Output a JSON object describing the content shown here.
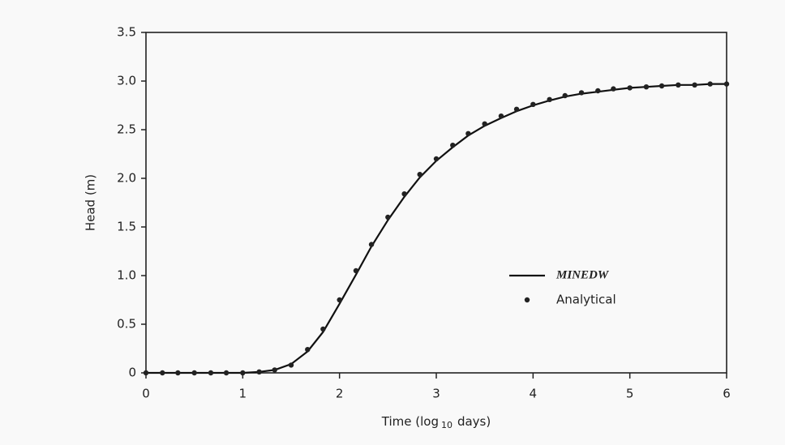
{
  "chart_data": {
    "type": "line",
    "ylabel": "Head (m)",
    "xlabel": {
      "main": "Time (log",
      "sub": "10",
      "end": "days)"
    },
    "x": [
      0,
      0.17,
      0.33,
      0.5,
      0.67,
      0.83,
      1,
      1.17,
      1.33,
      1.5,
      1.67,
      1.83,
      2,
      2.17,
      2.33,
      2.5,
      2.67,
      2.83,
      3,
      3.17,
      3.33,
      3.5,
      3.67,
      3.83,
      4,
      4.17,
      4.33,
      4.5,
      4.67,
      4.83,
      5,
      5.17,
      5.33,
      5.5,
      5.67,
      5.83,
      6
    ],
    "series": [
      {
        "name": "MINEDW",
        "kind": "line",
        "color": "#111111",
        "values": [
          0,
          0,
          0,
          0,
          0,
          0,
          0,
          0.01,
          0.03,
          0.09,
          0.22,
          0.42,
          0.71,
          1.01,
          1.3,
          1.57,
          1.81,
          2.01,
          2.18,
          2.32,
          2.44,
          2.54,
          2.62,
          2.69,
          2.75,
          2.8,
          2.84,
          2.87,
          2.89,
          2.91,
          2.93,
          2.94,
          2.95,
          2.96,
          2.96,
          2.97,
          2.97
        ]
      },
      {
        "name": "Analytical",
        "kind": "scatter",
        "color": "#222222",
        "values": [
          0,
          0,
          0,
          0,
          0,
          0,
          0,
          0.01,
          0.03,
          0.08,
          0.24,
          0.45,
          0.75,
          1.05,
          1.32,
          1.6,
          1.84,
          2.04,
          2.2,
          2.34,
          2.46,
          2.56,
          2.64,
          2.71,
          2.76,
          2.81,
          2.85,
          2.88,
          2.9,
          2.92,
          2.93,
          2.94,
          2.95,
          2.96,
          2.96,
          2.97,
          2.97
        ]
      }
    ],
    "xlim": [
      0,
      6
    ],
    "xticks": [
      0,
      1,
      2,
      3,
      4,
      5,
      6
    ],
    "ylim": [
      0,
      3.5
    ],
    "yticks": [
      0,
      0.5,
      {
        "value": 1,
        "label": "1.0"
      },
      1.5,
      {
        "value": 2,
        "label": "2.0"
      },
      2.5,
      {
        "value": 3,
        "label": "3.0"
      },
      3.5
    ],
    "legend": "center-right"
  }
}
